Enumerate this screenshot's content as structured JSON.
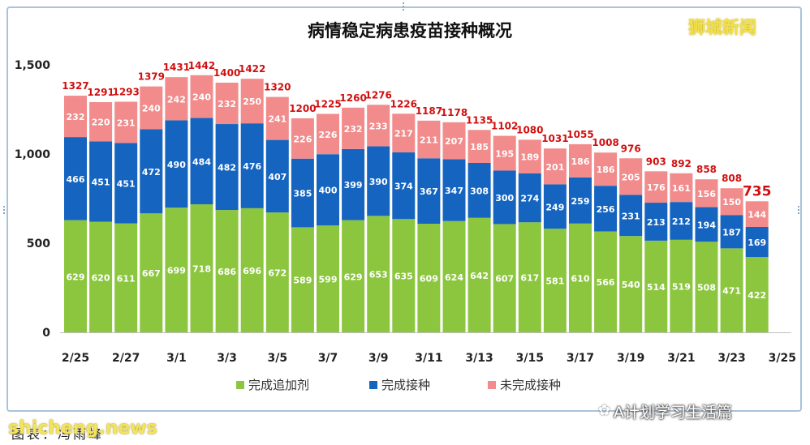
{
  "chart_data": {
    "type": "bar",
    "stacked": true,
    "title": "病情稳定病患疫苗接种概况",
    "categories": [
      "2/25",
      "2/26",
      "2/27",
      "2/28",
      "3/1",
      "3/2",
      "3/3",
      "3/4",
      "3/5",
      "3/6",
      "3/7",
      "3/8",
      "3/9",
      "3/10",
      "3/11",
      "3/12",
      "3/13",
      "3/14",
      "3/15",
      "3/16",
      "3/17",
      "3/18",
      "3/19",
      "3/20",
      "3/21",
      "3/22",
      "3/23",
      "3/24"
    ],
    "x_tick_labels": [
      "2/25",
      "2/27",
      "3/1",
      "3/3",
      "3/5",
      "3/7",
      "3/9",
      "3/11",
      "3/13",
      "3/15",
      "3/17",
      "3/19",
      "3/21",
      "3/23",
      "3/25"
    ],
    "y_ticks": [
      "0",
      "500",
      "1,000",
      "1,500"
    ],
    "ylim": [
      0,
      1500
    ],
    "grid": false,
    "legend_position": "bottom",
    "series": [
      {
        "name": "完成追加剂",
        "color": "#8cc63f",
        "values": [
          629,
          620,
          611,
          667,
          699,
          718,
          686,
          696,
          672,
          589,
          599,
          629,
          653,
          635,
          609,
          624,
          642,
          607,
          617,
          581,
          610,
          566,
          540,
          514,
          519,
          508,
          471,
          422
        ]
      },
      {
        "name": "完成接种",
        "color": "#1565c0",
        "values": [
          466,
          451,
          451,
          472,
          490,
          484,
          482,
          476,
          407,
          385,
          400,
          399,
          390,
          374,
          367,
          347,
          308,
          300,
          274,
          249,
          259,
          256,
          231,
          213,
          212,
          194,
          187,
          169
        ]
      },
      {
        "name": "未完成接种",
        "color": "#f28b8b",
        "values": [
          232,
          220,
          231,
          240,
          242,
          240,
          232,
          250,
          241,
          226,
          226,
          232,
          233,
          217,
          211,
          207,
          185,
          195,
          189,
          201,
          186,
          186,
          205,
          176,
          161,
          156,
          150,
          144
        ]
      }
    ],
    "totals": [
      1327,
      1291,
      1293,
      1379,
      1431,
      1442,
      1400,
      1422,
      1320,
      1200,
      1225,
      1260,
      1276,
      1226,
      1187,
      1178,
      1135,
      1102,
      1080,
      1031,
      1055,
      1008,
      976,
      903,
      892,
      858,
      808,
      735
    ]
  },
  "brand": "狮城新闻",
  "footer": {
    "site": "shicheng.news",
    "source": "图表：冯雨峰"
  },
  "watermark": "A计划学习生活篇",
  "watermark_icon": "wechat-icon"
}
